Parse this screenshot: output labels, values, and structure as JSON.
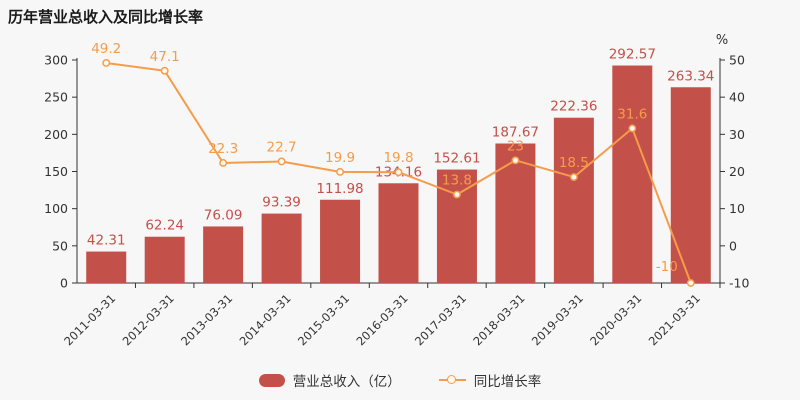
{
  "title": "历年营业总收入及同比增长率",
  "legend": {
    "bar_label": "营业总收入（亿）",
    "line_label": "同比增长率"
  },
  "colors": {
    "background": "#f7f7f7",
    "bar": "#c4504a",
    "bar_label": "#c4504a",
    "line": "#f59c4b",
    "line_label": "#f59c4b",
    "marker_fill": "#fff8ec",
    "axis": "#333333",
    "tick_text": "#333333"
  },
  "chart_data": {
    "type": "bar+line combo",
    "title": "历年营业总收入及同比增长率",
    "categories": [
      "2011-03-31",
      "2012-03-31",
      "2013-03-31",
      "2014-03-31",
      "2015-03-31",
      "2016-03-31",
      "2017-03-31",
      "2018-03-31",
      "2019-03-31",
      "2020-03-31",
      "2021-03-31"
    ],
    "series": [
      {
        "name": "营业总收入（亿）",
        "type": "bar",
        "y_axis": "left",
        "values": [
          42.31,
          62.24,
          76.09,
          93.39,
          111.98,
          134.16,
          152.61,
          187.67,
          222.36,
          292.57,
          263.34
        ]
      },
      {
        "name": "同比增长率",
        "type": "line",
        "y_axis": "right",
        "values": [
          49.2,
          47.1,
          22.3,
          22.7,
          19.9,
          19.8,
          13.8,
          23,
          18.5,
          31.6,
          -10
        ]
      }
    ],
    "left_axis": {
      "min": 0,
      "max": 300,
      "ticks": [
        0,
        50,
        100,
        150,
        200,
        250,
        300
      ]
    },
    "right_axis": {
      "min": -10,
      "max": 50,
      "ticks": [
        -10,
        0,
        10,
        20,
        30,
        40,
        50
      ],
      "unit": "%"
    },
    "grid": false,
    "legend_position": "bottom",
    "x_labels_rotated": true
  }
}
